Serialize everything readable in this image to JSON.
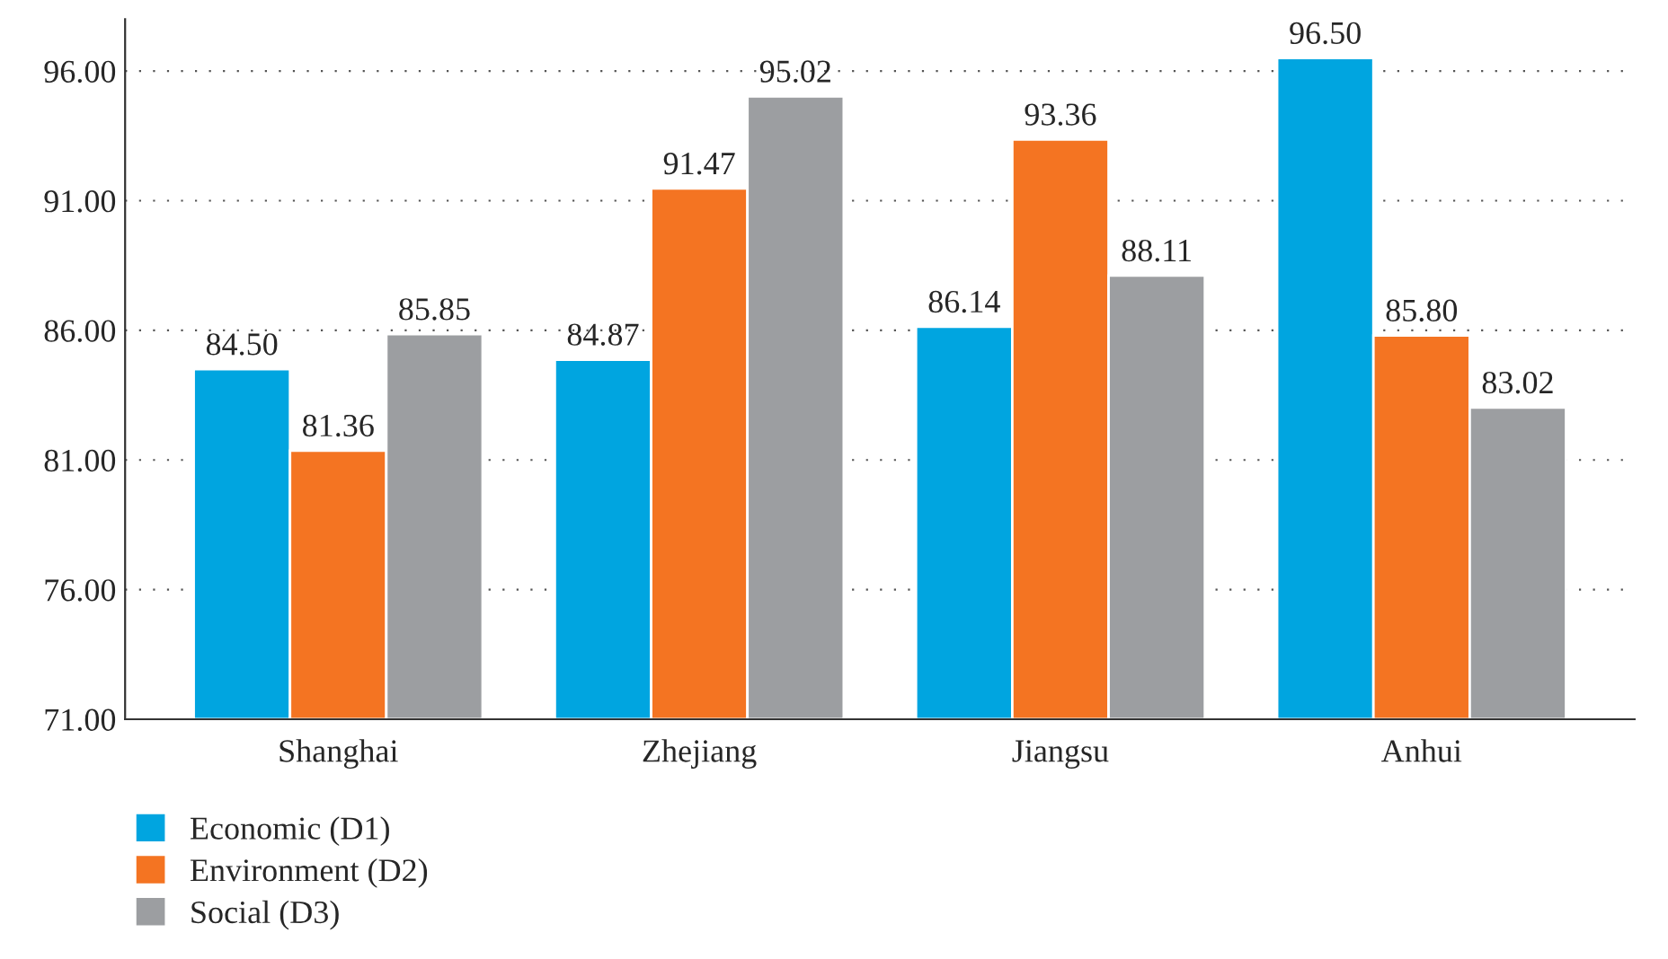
{
  "chart_data": {
    "type": "bar",
    "categories": [
      "Shanghai",
      "Zhejiang",
      "Jiangsu",
      "Anhui"
    ],
    "series": [
      {
        "name": "Economic (D1)",
        "color": "#00a5e0",
        "values": [
          84.5,
          84.87,
          86.14,
          96.5
        ],
        "value_labels": [
          "84.50",
          "84.87",
          "86.14",
          "96.50"
        ]
      },
      {
        "name": "Environment (D2)",
        "color": "#f47422",
        "values": [
          81.36,
          91.47,
          93.36,
          85.8
        ],
        "value_labels": [
          "81.36",
          "91.47",
          "93.36",
          "85.80"
        ]
      },
      {
        "name": "Social (D3)",
        "color": "#9c9ea1",
        "values": [
          85.85,
          95.02,
          88.11,
          83.02
        ],
        "value_labels": [
          "85.85",
          "95.02",
          "88.11",
          "83.02"
        ]
      }
    ],
    "ylim": [
      71,
      98
    ],
    "yticks": [
      {
        "value": 71,
        "label": "71.00"
      },
      {
        "value": 76,
        "label": "76.00"
      },
      {
        "value": 81,
        "label": "81.00"
      },
      {
        "value": 86,
        "label": "86.00"
      },
      {
        "value": 91,
        "label": "91.00"
      },
      {
        "value": 96,
        "label": "96.00"
      }
    ],
    "grid": "y",
    "legend": "bottom left"
  }
}
